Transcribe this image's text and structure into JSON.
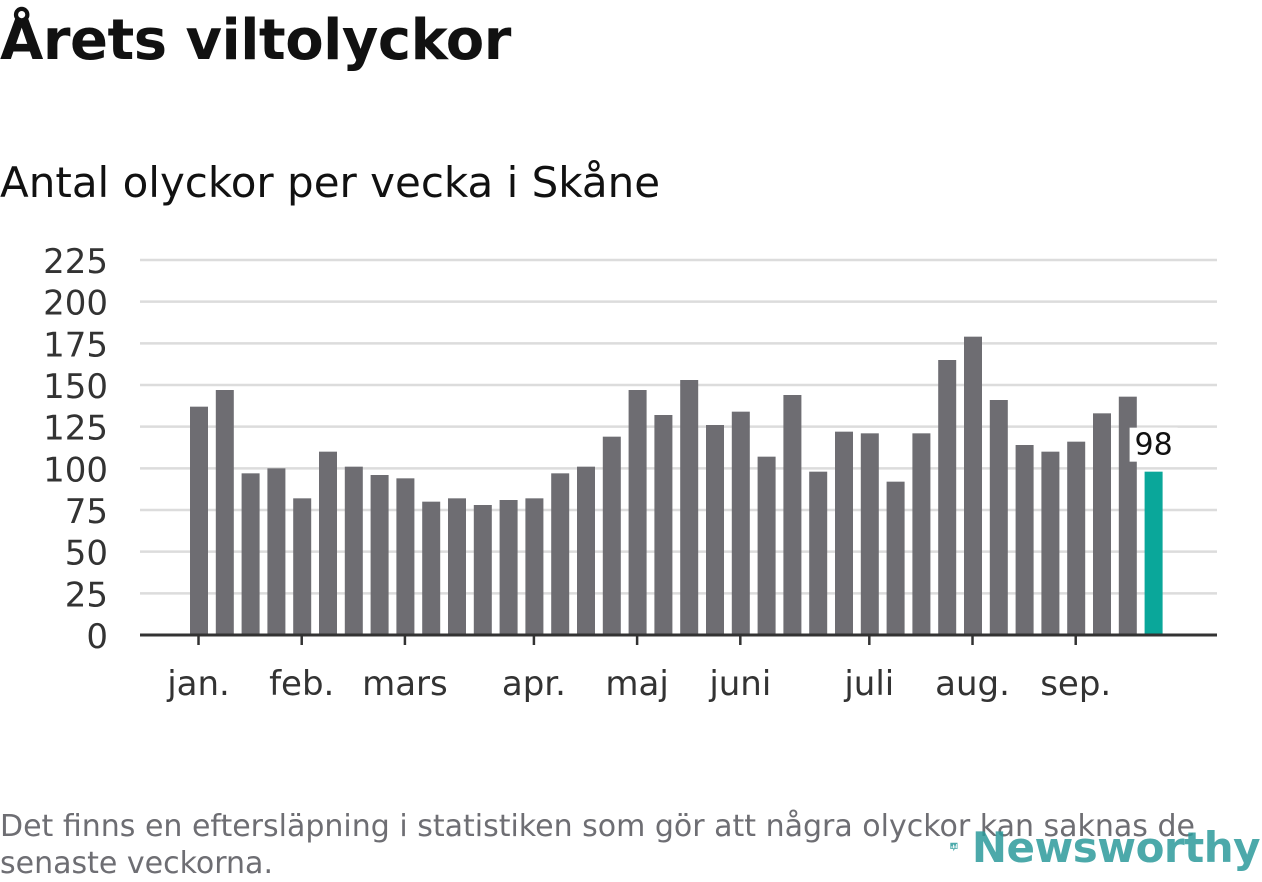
{
  "title": "Årets viltolyckor",
  "subtitle": "Antal olyckor per vecka i Skåne",
  "footnote": "Det finns en eftersläpning i statistiken som gör att några olyckor kan saknas de senaste veckorna.",
  "brand": {
    "name": "Newsworthy",
    "color": "#2d9b9c"
  },
  "chart_data": {
    "type": "bar",
    "title": "Årets viltolyckor",
    "subtitle": "Antal olyckor per vecka i Skåne",
    "xlabel": "",
    "ylabel": "",
    "ylim": [
      0,
      225
    ],
    "yticks": [
      0,
      25,
      50,
      75,
      100,
      125,
      150,
      175,
      200,
      225
    ],
    "grid": true,
    "bar_color": "#6e6d72",
    "highlight_color": "#0aa79a",
    "values": [
      137,
      147,
      97,
      100,
      82,
      110,
      101,
      96,
      94,
      80,
      82,
      78,
      81,
      82,
      97,
      101,
      119,
      147,
      132,
      153,
      126,
      134,
      107,
      144,
      98,
      122,
      121,
      92,
      121,
      165,
      179,
      141,
      114,
      110,
      116,
      133,
      143,
      98
    ],
    "highlight_index": 37,
    "highlight_label": "98",
    "month_labels": [
      {
        "label": "jan.",
        "week_index": 0.33
      },
      {
        "label": "feb.",
        "week_index": 4.33
      },
      {
        "label": "mars",
        "week_index": 8.33
      },
      {
        "label": "apr.",
        "week_index": 13.33
      },
      {
        "label": "maj",
        "week_index": 17.33
      },
      {
        "label": "juni",
        "week_index": 21.33
      },
      {
        "label": "juli",
        "week_index": 26.33
      },
      {
        "label": "aug.",
        "week_index": 30.33
      },
      {
        "label": "sep.",
        "week_index": 34.33
      }
    ]
  }
}
